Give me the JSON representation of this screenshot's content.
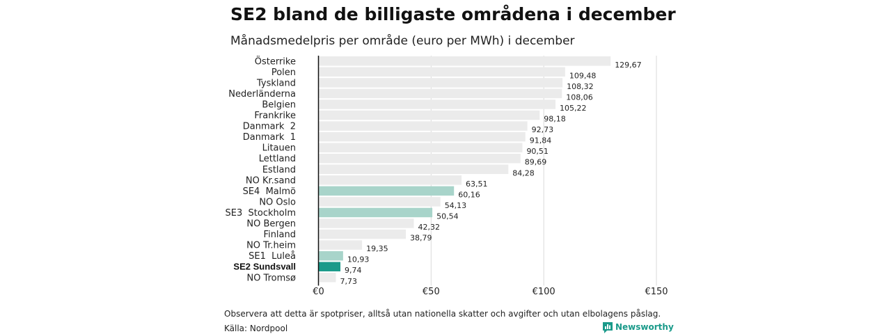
{
  "header": {
    "title": "SE2 bland de billigaste områdena i december",
    "subtitle": "Månadsmedelpris per område (euro per MWh) i december"
  },
  "footer": {
    "note": "Observera att detta är spotpriser, alltså utan nationella skatter och avgifter och utan elbolagens påslag.",
    "source": "Källa: Nordpool",
    "brand": "Newsworthy"
  },
  "colors": {
    "default_bar": "#ebebeb",
    "highlight_bar": "#a8d4ca",
    "focus_bar": "#1a9a8a",
    "grid": "#d9d9d9",
    "zero_line": "#111111"
  },
  "chart_data": {
    "type": "bar",
    "orientation": "horizontal",
    "title": "SE2 bland de billigaste områdena i december",
    "subtitle": "Månadsmedelpris per område (euro per MWh) i december",
    "xlim": [
      0,
      150
    ],
    "x_ticks": [
      {
        "value": 0,
        "label": "€0"
      },
      {
        "value": 50,
        "label": "€50"
      },
      {
        "value": 100,
        "label": "€100"
      },
      {
        "value": 150,
        "label": "€150"
      }
    ],
    "grid": true,
    "categories": [
      "Österrike",
      "Polen",
      "Tyskland",
      "Nederländerna",
      "Belgien",
      "Frankrike",
      "Danmark  2",
      "Danmark  1",
      "Litauen",
      "Lettland",
      "Estland",
      "NO Kr.sand",
      "SE4  Malmö",
      "NO Oslo",
      "SE3  Stockholm",
      "NO Bergen",
      "Finland",
      "NO Tr.heim",
      "SE1  Luleå",
      "SE2 Sundsvall",
      "NO Tromsø"
    ],
    "values": [
      129.67,
      109.48,
      108.32,
      108.06,
      105.22,
      98.18,
      92.73,
      91.84,
      90.51,
      89.69,
      84.28,
      63.51,
      60.16,
      54.13,
      50.54,
      42.32,
      38.79,
      19.35,
      10.93,
      9.74,
      7.73
    ],
    "value_labels": [
      "129,67",
      "109,48",
      "108,32",
      "108,06",
      "105,22",
      "98,18",
      "92,73",
      "91,84",
      "90,51",
      "89,69",
      "84,28",
      "63,51",
      "60,16",
      "54,13",
      "50,54",
      "42,32",
      "38,79",
      "19,35",
      "10,93",
      "9,74",
      "7,73"
    ],
    "highlight": [
      "default",
      "default",
      "default",
      "default",
      "default",
      "default",
      "default",
      "default",
      "default",
      "default",
      "default",
      "default",
      "highlight",
      "default",
      "highlight",
      "default",
      "default",
      "default",
      "highlight",
      "focus",
      "default"
    ]
  }
}
